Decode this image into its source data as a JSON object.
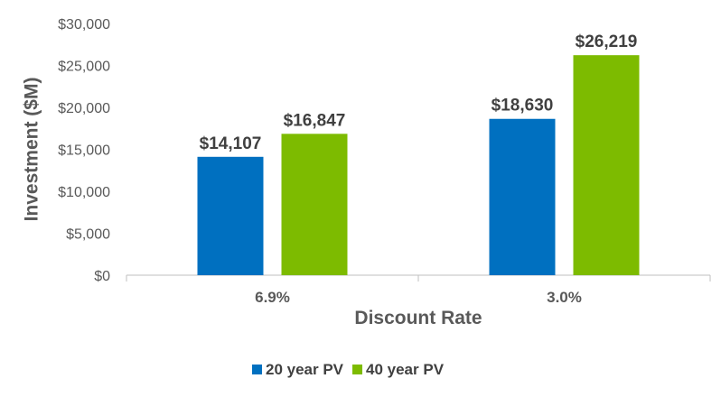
{
  "chart_data": {
    "type": "bar",
    "categories": [
      "6.9%",
      "3.0%"
    ],
    "series": [
      {
        "name": "20 year PV",
        "values": [
          14107,
          18630
        ],
        "labels": [
          "$14,107",
          "$18,630"
        ],
        "color": "#0070C0"
      },
      {
        "name": "40 year PV",
        "values": [
          16847,
          26219
        ],
        "labels": [
          "$16,847",
          "$26,219"
        ],
        "color": "#7DBB00"
      }
    ],
    "xlabel": "Discount Rate",
    "ylabel": "Investment ($M)",
    "ylim": [
      0,
      30000
    ],
    "yticks": [
      0,
      5000,
      10000,
      15000,
      20000,
      25000,
      30000
    ],
    "ytick_labels": [
      "$0",
      "$5,000",
      "$10,000",
      "$15,000",
      "$20,000",
      "$25,000",
      "$30,000"
    ],
    "grid": false,
    "legend": "bottom"
  }
}
